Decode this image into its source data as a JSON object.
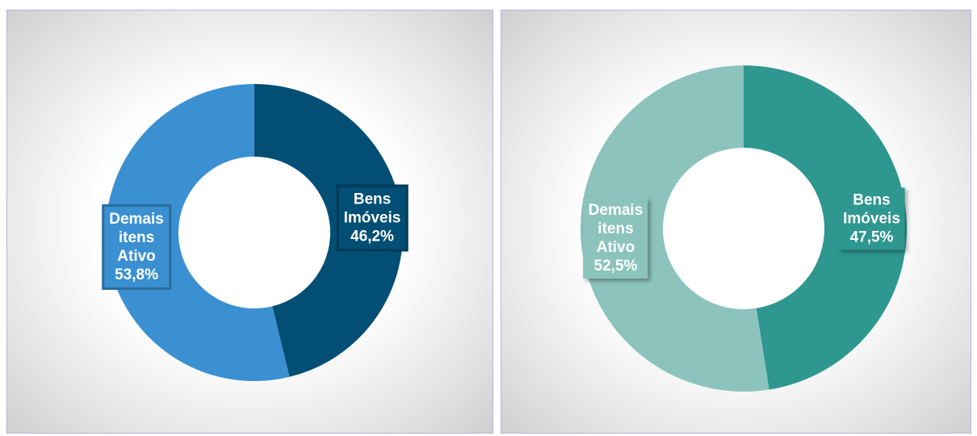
{
  "chart_data": [
    {
      "type": "donut",
      "categories": [
        "Bens Imóveis",
        "Demais itens Ativo"
      ],
      "values": [
        46.2,
        53.8
      ],
      "value_labels": [
        "46,2%",
        "53,8%"
      ],
      "colors": [
        "#024e74",
        "#3a90d0"
      ]
    },
    {
      "type": "donut",
      "categories": [
        "Bens Imóveis",
        "Demais itens Ativo"
      ],
      "values": [
        47.5,
        52.5
      ],
      "value_labels": [
        "47,5%",
        "52,5%"
      ],
      "colors": [
        "#2e978f",
        "#8cc4bd"
      ]
    }
  ]
}
